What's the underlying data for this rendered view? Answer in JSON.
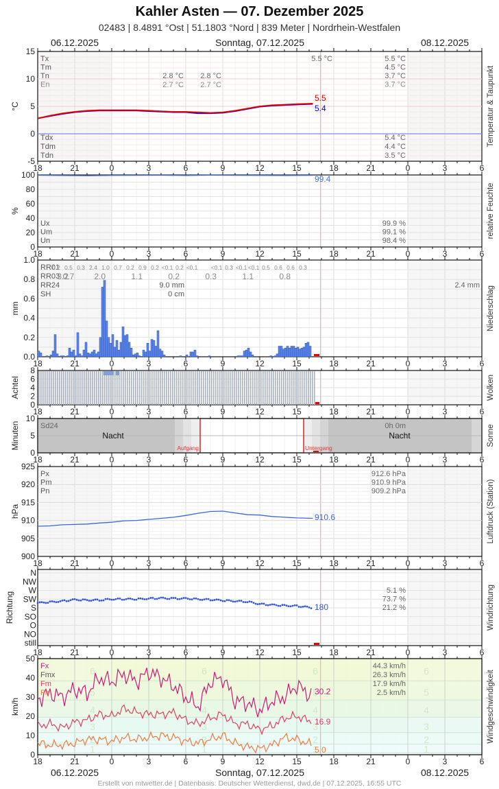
{
  "header": {
    "title": "Kahler Asten  —  07. Dezember 2025",
    "subtitle": "02483  |  8.4891 °Ost  |  51.1803 °Nord  |  839 Meter  |  Nordrhein-Westfalen",
    "date_prev": "06.12.2025",
    "date_current": "Sonntag, 07.12.2025",
    "date_next": "08.12.2025"
  },
  "footer": {
    "credit": "Erstellt von mtwetter.de | Datenbasis: Deutscher Wetterdienst, dwd.de | 07.12.2025, 16:55 UTC"
  },
  "x_axis": {
    "ticks": [
      "18",
      "21",
      "0",
      "3",
      "6",
      "9",
      "12",
      "15",
      "18",
      "21",
      "0",
      "3",
      "6"
    ],
    "start": "06.12.2025 18:00",
    "end": "08.12.2025 06:00",
    "now_marker": "16:55"
  },
  "colors": {
    "temperature": "#e00000",
    "dewpoint": "#0000dd",
    "humidity": "#4a73d8",
    "precip_bar": "#5a86e8",
    "pressure": "#3a66d8",
    "wind_dir": "#3355dd",
    "gust_fx": "#cc1a7a",
    "wind_fm": "#e04060",
    "wind_fn": "#f07a40",
    "now_line": "#f4b0b0",
    "sunrise_line": "#dd0000"
  },
  "chart_data": [
    {
      "id": "temperature",
      "type": "line",
      "title": "Temperatur & Taupunkt",
      "ylabel": "°C",
      "ylim": [
        -5,
        15
      ],
      "yticks": [
        "15",
        "10",
        "5",
        "0",
        "-5"
      ],
      "x_hours": [
        0,
        1,
        2,
        3,
        4,
        5,
        6,
        7,
        8,
        9,
        10,
        11,
        12,
        13,
        14,
        15,
        16,
        17,
        18,
        19,
        20,
        21,
        22.3
      ],
      "series": [
        {
          "name": "Temperatur",
          "values": [
            2.8,
            3.3,
            3.7,
            4.0,
            4.2,
            4.3,
            4.3,
            4.3,
            4.3,
            4.2,
            4.1,
            4.0,
            4.0,
            3.9,
            3.8,
            3.9,
            4.2,
            4.6,
            5.0,
            5.2,
            5.3,
            5.4,
            5.5
          ]
        },
        {
          "name": "Taupunkt",
          "values": [
            2.8,
            3.2,
            3.6,
            3.9,
            4.1,
            4.2,
            4.2,
            4.2,
            4.2,
            4.1,
            4.0,
            3.9,
            3.9,
            3.7,
            3.7,
            3.8,
            4.1,
            4.5,
            4.9,
            5.1,
            5.2,
            5.3,
            5.4
          ]
        }
      ],
      "current": {
        "temperature": "5.5",
        "dewpoint": "5.4"
      },
      "stats_labels": [
        "Tx",
        "Tm",
        "Tn",
        "En"
      ],
      "stats_prev": {
        "Tn": "2.8 °C",
        "En": "2.7 °C"
      },
      "stats_prev2": {
        "Tn": "2.8 °C",
        "En": "2.7 °C"
      },
      "stats_day_tx": "5.5 °C",
      "stats_today": {
        "Tx": "5.5 °C",
        "Tm": "4.5 °C",
        "Tn": "3.7 °C",
        "En": "3.7 °C"
      },
      "dew_labels": [
        "Tdx",
        "Tdm",
        "Tdn"
      ],
      "dew_today": {
        "Tdx": "5.4 °C",
        "Tdm": "4.4 °C",
        "Tdn": "3.5 °C"
      }
    },
    {
      "id": "humidity",
      "type": "line",
      "title": "relative Feuchte",
      "ylabel": "%",
      "ylim": [
        0,
        100
      ],
      "yticks": [
        "100",
        "80",
        "60",
        "40",
        "20",
        "0"
      ],
      "x_hours": [
        0,
        2,
        4,
        6,
        8,
        10,
        12,
        14,
        16,
        18,
        20,
        22.3
      ],
      "values": [
        99.5,
        99.2,
        99.0,
        99.3,
        99.4,
        99.5,
        99.2,
        99.6,
        99.4,
        99.3,
        99.2,
        99.4
      ],
      "current": "99.4",
      "stats_labels": [
        "Ux",
        "Um",
        "Un"
      ],
      "stats_today": {
        "Ux": "99.9 %",
        "Um": "99.1 %",
        "Un": "98.4 %"
      }
    },
    {
      "id": "precipitation",
      "type": "bar",
      "title": "Niederschlag",
      "ylabel": "mm",
      "ylim": [
        0,
        1.0
      ],
      "yticks": [
        "1.0",
        "0.8",
        "0.6",
        "0.4",
        "0.2",
        "0.0"
      ],
      "bar_width_minutes": 10,
      "values_10min": [
        0.06,
        0.04,
        0,
        0,
        0.01,
        0,
        0.02,
        0.06,
        0.23,
        0.03,
        0,
        0.01,
        0.01,
        0,
        0.01,
        0.09,
        0.05,
        0.07,
        0.01,
        0.25,
        0.03,
        0.01,
        0.07,
        0.15,
        0.04,
        0.03,
        0.05,
        0.07,
        0.03,
        0.05,
        0.2,
        0.72,
        0.79,
        0.37,
        0.2,
        0.14,
        0.23,
        0.1,
        0.17,
        0.07,
        0.15,
        0.31,
        0.22,
        0.23,
        0.15,
        0.09,
        0.02,
        0.03,
        0.04,
        0.01,
        0,
        0.07,
        0.05,
        0.14,
        0.06,
        0.18,
        0.17,
        0.11,
        0.27,
        0.08,
        0.06,
        0.02,
        0,
        0,
        0,
        0,
        0,
        0,
        0,
        0.01,
        0,
        0,
        0.02,
        0,
        0.05,
        0.05,
        0.07,
        0.01,
        0,
        0,
        0,
        0,
        0,
        0.01,
        0,
        0,
        0,
        0,
        0,
        0,
        0,
        0,
        0,
        0,
        0,
        0,
        0,
        0.01,
        0.01,
        0.01,
        0.06,
        0.07,
        0.09,
        0.05,
        0.02,
        0,
        0,
        0,
        0,
        0,
        0,
        0,
        0,
        0.01,
        0,
        0.01,
        0.03,
        0.11,
        0.11,
        0.08,
        0.09,
        0.11,
        0.09,
        0.11,
        0.11,
        0.09,
        0.1,
        0.08,
        0.09,
        0.1,
        0.14,
        0.15,
        0.11
      ],
      "rr01_labels": [
        "RR01",
        "0.2",
        "0.5",
        "0.3",
        "2.4",
        "1.0",
        "0.7",
        "0.2",
        "0.9",
        "0.2",
        "<0.1",
        "0.2",
        "<0.1",
        "",
        "<0.1",
        "0.3",
        "<0.1",
        "<0.1",
        "0.5",
        "0.6",
        "0.6",
        "0.3"
      ],
      "rr03_labels": [
        "RR03",
        "0.7",
        "3.2",
        "2.0",
        "1.1",
        "0.2",
        "0.3",
        "1.1",
        "0.8"
      ],
      "rr24_label": "RR24",
      "sh_label": "SH",
      "rr24_value": "9.0 mm",
      "sh_value": "0 cm",
      "rr_today": "2.4 mm"
    },
    {
      "id": "clouds",
      "type": "bar",
      "title": "Wolken",
      "ylabel": "Achtel",
      "ylim": [
        0,
        8
      ],
      "yticks": [
        "8",
        "6",
        "4",
        "2",
        "0"
      ],
      "note": "overcast 8/8 (fog) throughout observed period",
      "values_hourly": [
        8,
        8,
        8,
        8,
        8,
        8,
        8,
        8,
        8,
        8,
        8,
        8,
        8,
        8,
        8,
        8,
        8,
        8,
        8,
        8,
        8,
        8,
        8
      ]
    },
    {
      "id": "sunshine",
      "type": "bar",
      "title": "Sonne",
      "ylabel": "Minuten",
      "ylim": [
        0,
        10
      ],
      "yticks": [
        "10",
        "5",
        "0"
      ],
      "label_sd24": "Sd24",
      "sd24_value": "0h 0m",
      "night_label": "Nacht",
      "sunrise_label": "Aufgang",
      "sunset_label": "Untergang",
      "sunrise": "07:09",
      "sunset": "15:34",
      "values": []
    },
    {
      "id": "pressure",
      "type": "line",
      "title": "Luftdruck (Station)",
      "ylabel": "hPa",
      "ylim": [
        900,
        925
      ],
      "yticks": [
        "925",
        "920",
        "915",
        "910",
        "905",
        "900"
      ],
      "x_hours": [
        0,
        1,
        2,
        3,
        4,
        5,
        6,
        7,
        8,
        9,
        10,
        11,
        12,
        13,
        14,
        15,
        16,
        17,
        18,
        19,
        20,
        21,
        22.3
      ],
      "values": [
        908.4,
        908.5,
        908.8,
        908.9,
        909.0,
        909.3,
        909.5,
        909.9,
        910.0,
        910.3,
        910.6,
        910.9,
        911.4,
        912.0,
        912.5,
        912.6,
        912.1,
        911.6,
        911.5,
        911.1,
        910.9,
        910.7,
        910.6
      ],
      "current": "910.6",
      "stats_labels": [
        "Px",
        "Pm",
        "Pn"
      ],
      "stats_today": {
        "Px": "912.6 hPa",
        "Pm": "910.9 hPa",
        "Pn": "909.2 hPa"
      }
    },
    {
      "id": "wind_direction",
      "type": "scatter",
      "title": "Windrichtung",
      "ylabel": "Richtung",
      "yticks": [
        "N",
        "NW",
        "W",
        "SW",
        "S",
        "SO",
        "O",
        "NO",
        "still"
      ],
      "x_hours": [
        0,
        1,
        2,
        3,
        4,
        5,
        6,
        7,
        8,
        9,
        10,
        11,
        12,
        13,
        14,
        15,
        16,
        17,
        18,
        19,
        20,
        21,
        22.3
      ],
      "values_deg": [
        205,
        210,
        215,
        222,
        220,
        220,
        225,
        225,
        225,
        228,
        230,
        228,
        228,
        225,
        222,
        218,
        215,
        212,
        200,
        195,
        192,
        190,
        180
      ],
      "current": "180",
      "stats_today": [
        "5.1 %",
        "73.7 %",
        "21.2 %"
      ]
    },
    {
      "id": "wind_speed",
      "type": "line",
      "title": "Windgeschwindigkeit",
      "ylabel": "km/h",
      "ylim": [
        0,
        50
      ],
      "yticks": [
        "50",
        "40",
        "30",
        "20",
        "10",
        "0"
      ],
      "beaufort_labels": [
        "6",
        "5",
        "4",
        "3",
        "2",
        "1"
      ],
      "x_hours": [
        0,
        1,
        2,
        3,
        4,
        5,
        6,
        7,
        8,
        9,
        10,
        11,
        12,
        13,
        14,
        15,
        16,
        17,
        18,
        19,
        20,
        21,
        22.3
      ],
      "series": [
        {
          "name": "Fx",
          "values": [
            29,
            32,
            30,
            34,
            32,
            40,
            38,
            42,
            38,
            43,
            40,
            36,
            30,
            25,
            38,
            40,
            28,
            27,
            23,
            28,
            30,
            36,
            30.2
          ]
        },
        {
          "name": "Fm",
          "values": [
            15,
            16,
            14,
            17,
            18,
            21,
            20,
            24,
            22,
            21,
            21,
            22,
            18,
            16,
            19,
            21,
            16,
            16,
            13,
            15,
            19,
            20,
            16.9
          ]
        },
        {
          "name": "Fn",
          "values": [
            6,
            5,
            5,
            6,
            8,
            8,
            7,
            9,
            8,
            9,
            10,
            9,
            7,
            6,
            8,
            10,
            6,
            4,
            3,
            5,
            9,
            8,
            5.0
          ]
        }
      ],
      "current": {
        "Fx": "30.2",
        "Fm": "16.9",
        "Fn": "5.0"
      },
      "stats_labels": [
        "Fx",
        "Fmx",
        "Fm",
        "Fn"
      ],
      "stats_today": {
        "Fx": "44.3 km/h",
        "Fmx": "26.3 km/h",
        "Fm": "17.9 km/h",
        "Fn": "2.5 km/h"
      }
    }
  ]
}
